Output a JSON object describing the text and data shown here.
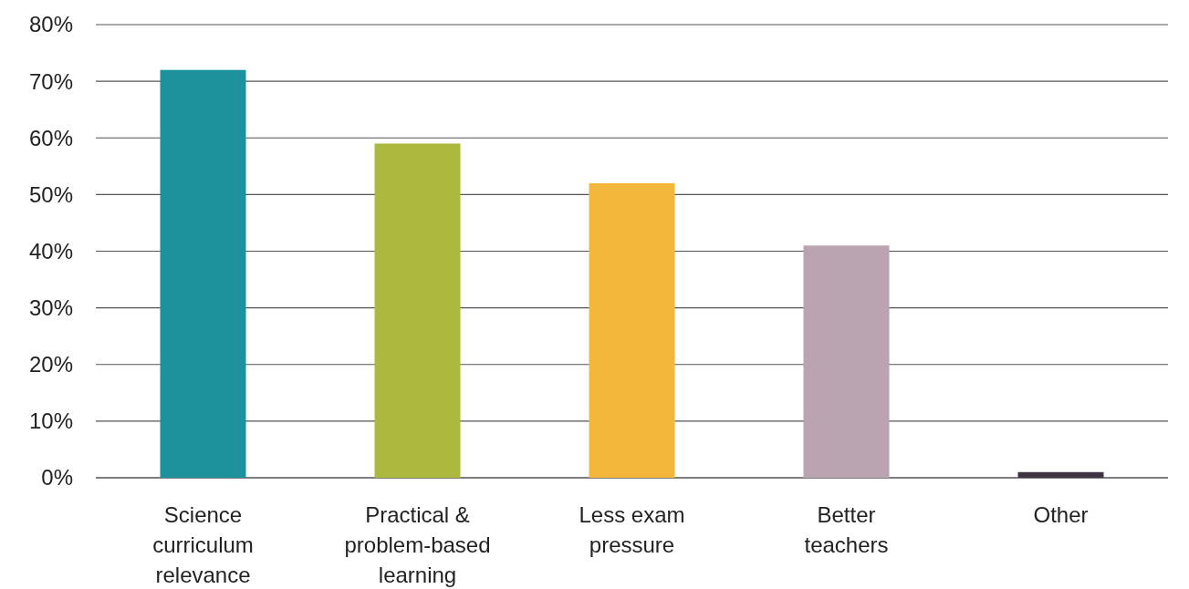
{
  "chart_data": {
    "type": "bar",
    "categories": [
      "Science curriculum relevance",
      "Practical & problem-based learning",
      "Less exam pressure",
      "Better teachers",
      "Other"
    ],
    "values": [
      72,
      59,
      52,
      41,
      1
    ],
    "colors": [
      "#1d929c",
      "#adb83e",
      "#f3b73b",
      "#baa4b0",
      "#3f3243"
    ],
    "ylim": [
      0,
      80
    ],
    "yticks": [
      {
        "value": 0,
        "label": "0%"
      },
      {
        "value": 10,
        "label": "10%"
      },
      {
        "value": 20,
        "label": "20%"
      },
      {
        "value": 30,
        "label": "30%"
      },
      {
        "value": 40,
        "label": "40%"
      },
      {
        "value": 50,
        "label": "50%"
      },
      {
        "value": 60,
        "label": "60%"
      },
      {
        "value": 70,
        "label": "70%"
      },
      {
        "value": 80,
        "label": "80%"
      }
    ],
    "grid": "y"
  }
}
